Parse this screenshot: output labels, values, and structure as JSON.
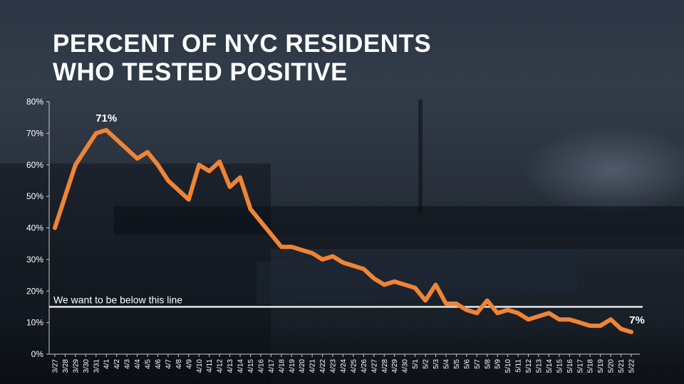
{
  "title_lines": [
    "PERCENT OF NYC RESIDENTS",
    "WHO TESTED POSITIVE"
  ],
  "colors": {
    "series": "#f08435",
    "reference_line": "#e8e8e8",
    "text": "#ffffff",
    "axis": "#c8c8c8"
  },
  "chart_data": {
    "type": "line",
    "title": "PERCENT OF NYC RESIDENTS WHO TESTED POSITIVE",
    "xlabel": "",
    "ylabel": "",
    "ylim": [
      0,
      80
    ],
    "y_ticks": [
      0,
      10,
      20,
      30,
      40,
      50,
      60,
      70,
      80
    ],
    "y_tick_labels": [
      "0%",
      "10%",
      "20%",
      "30%",
      "40%",
      "50%",
      "60%",
      "70%",
      "80%"
    ],
    "grid": false,
    "legend": "none",
    "categories": [
      "3/27",
      "3/28",
      "3/29",
      "3/30",
      "3/31",
      "4/1",
      "4/2",
      "4/3",
      "4/4",
      "4/5",
      "4/6",
      "4/7",
      "4/8",
      "4/9",
      "4/10",
      "4/11",
      "4/12",
      "4/13",
      "4/14",
      "4/15",
      "4/16",
      "4/17",
      "4/18",
      "4/19",
      "4/20",
      "4/21",
      "4/22",
      "4/23",
      "4/24",
      "4/25",
      "4/26",
      "4/27",
      "4/28",
      "4/29",
      "4/30",
      "5/1",
      "5/2",
      "5/3",
      "5/4",
      "5/5",
      "5/6",
      "5/7",
      "5/8",
      "5/9",
      "5/10",
      "5/11",
      "5/12",
      "5/13",
      "5/14",
      "5/15",
      "5/16",
      "5/17",
      "5/18",
      "5/19",
      "5/20",
      "5/21",
      "5/22"
    ],
    "values": [
      40,
      50,
      60,
      65,
      70,
      71,
      68,
      65,
      62,
      64,
      60,
      55,
      52,
      49,
      60,
      58,
      61,
      53,
      56,
      46,
      42,
      38,
      34,
      34,
      33,
      32,
      30,
      31,
      29,
      28,
      27,
      24,
      22,
      23,
      22,
      21,
      17,
      22,
      16,
      16,
      14,
      13,
      17,
      13,
      14,
      13,
      11,
      12,
      13,
      11,
      11,
      10,
      9,
      9,
      11,
      8,
      7
    ],
    "reference_line": {
      "value": 15,
      "label": "We want to be below this line"
    },
    "annotations": [
      {
        "category": "4/1",
        "text": "71%"
      },
      {
        "category": "5/22",
        "text": "7%"
      }
    ]
  }
}
